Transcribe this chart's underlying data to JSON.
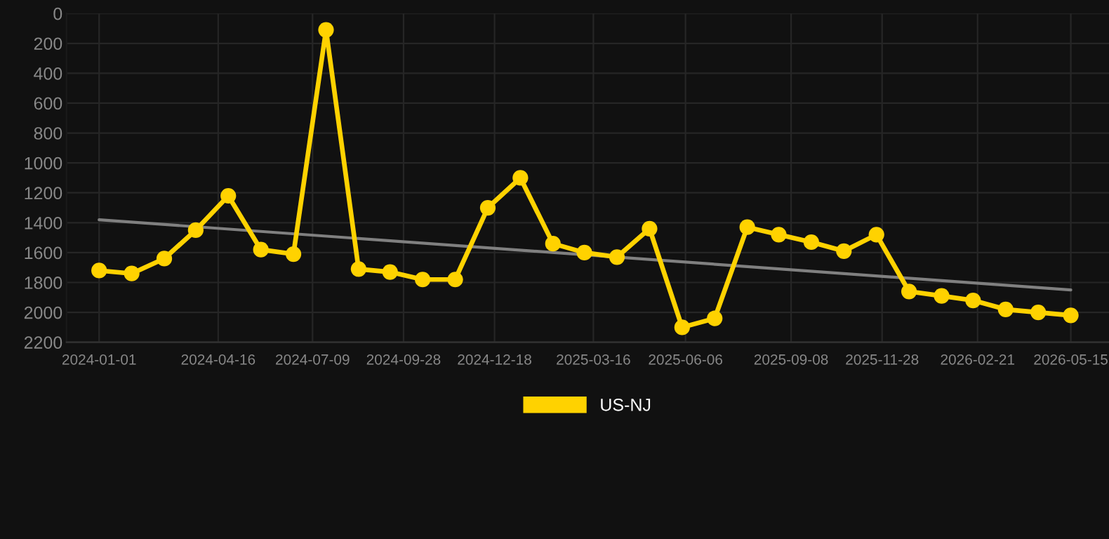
{
  "chart_data": {
    "type": "line",
    "x": [
      "2024-01-01",
      "2024-01-30",
      "2024-02-28",
      "2024-03-27",
      "2024-04-25",
      "2024-05-24",
      "2024-06-22",
      "2024-07-21",
      "2024-08-19",
      "2024-09-16",
      "2024-10-15",
      "2024-11-13",
      "2024-12-12",
      "2025-01-10",
      "2025-02-08",
      "2025-03-08",
      "2025-04-06",
      "2025-05-05",
      "2025-06-03",
      "2025-07-02",
      "2025-07-31",
      "2025-08-28",
      "2025-09-26",
      "2025-10-25",
      "2025-11-23",
      "2025-12-22",
      "2026-01-20",
      "2026-02-17",
      "2026-03-18",
      "2026-04-16",
      "2026-05-15"
    ],
    "series": [
      {
        "name": "US-NJ",
        "color": "#ffd200",
        "values": [
          1720,
          1740,
          1640,
          1450,
          1220,
          1580,
          1610,
          110,
          1710,
          1730,
          1780,
          1780,
          1300,
          1100,
          1540,
          1600,
          1630,
          1440,
          2100,
          2040,
          1430,
          1480,
          1530,
          1590,
          1480,
          1860,
          1890,
          1920,
          1980,
          2000,
          2020
        ]
      },
      {
        "type": "line",
        "color": "#808080",
        "x": [
          "2024-01-01",
          "2026-05-15"
        ],
        "values": [
          1380,
          1850
        ],
        "marker": "none"
      }
    ],
    "xlim": [
      "2023-12-03",
      "2026-06-18"
    ],
    "xticks": [
      "2024-01-01",
      "2024-04-16",
      "2024-07-09",
      "2024-09-28",
      "2024-12-18",
      "2025-03-16",
      "2025-06-06",
      "2025-09-08",
      "2025-11-28",
      "2026-02-21",
      "2026-05-15"
    ],
    "ylim": [
      2200,
      0
    ],
    "yticks": [
      0,
      200,
      400,
      600,
      800,
      1000,
      1200,
      1400,
      1600,
      1800,
      2000,
      2200
    ],
    "grid": true,
    "legend": "bottom",
    "marker": "circle",
    "line_style": "solid"
  }
}
